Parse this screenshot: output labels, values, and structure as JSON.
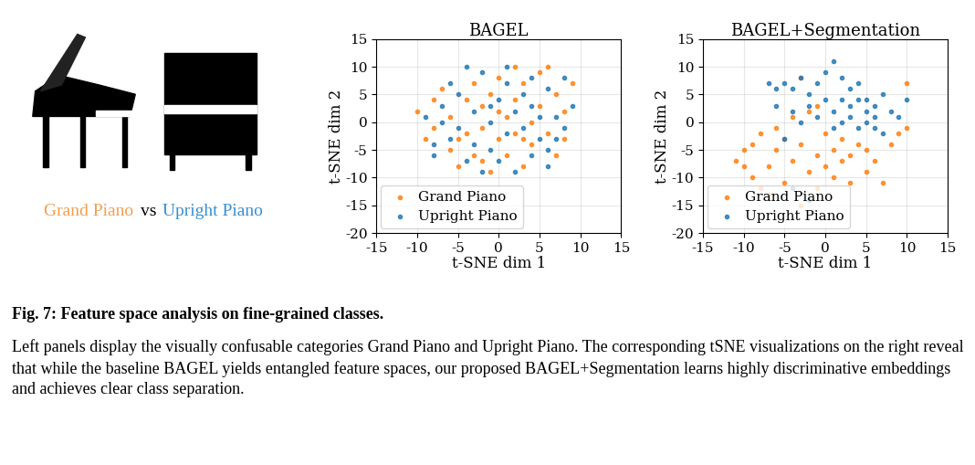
{
  "panel_text": {
    "left": "Grand Piano",
    "middle": "vs",
    "right": "Upright Piano",
    "left_color": "#f0a050",
    "right_color": "#3a8fd0"
  },
  "chart_data": [
    {
      "type": "scatter",
      "title": "BAGEL",
      "x_label": "t-SNE dim 1",
      "y_label": "t-SNE dim 2",
      "xlim": [
        -15,
        15
      ],
      "ylim": [
        -20,
        15
      ],
      "xticks": [
        -15,
        -10,
        -5,
        0,
        5,
        10,
        15
      ],
      "yticks": [
        -20,
        -15,
        -10,
        -5,
        0,
        5,
        10,
        15
      ],
      "grid": true,
      "legend": "lower left",
      "series": [
        {
          "name": "Grand Piano",
          "color": "#ff7f0e",
          "x": [
            -10,
            -9,
            -8,
            -7,
            -6,
            -6,
            -5,
            -4,
            -4,
            -3,
            -3,
            -2,
            -2,
            -1,
            -1,
            0,
            0,
            1,
            1,
            2,
            2,
            2,
            3,
            3,
            4,
            4,
            5,
            5,
            6,
            6,
            7,
            7,
            8,
            8,
            9,
            -8,
            -5,
            0,
            3,
            -2
          ],
          "y": [
            2,
            -3,
            -1,
            6,
            -5,
            1,
            -8,
            4,
            -2,
            7,
            -6,
            -1,
            3,
            -9,
            5,
            -3,
            8,
            -6,
            1,
            10,
            -2,
            4,
            -8,
            7,
            0,
            -4,
            9,
            3,
            -2,
            10,
            5,
            -6,
            2,
            -3,
            7,
            4,
            -3,
            2,
            -3,
            -7
          ]
        },
        {
          "name": "Upright Piano",
          "color": "#1f77b4",
          "x": [
            -9,
            -8,
            -7,
            -7,
            -6,
            -5,
            -5,
            -4,
            -3,
            -3,
            -2,
            -2,
            -1,
            -1,
            0,
            0,
            1,
            1,
            2,
            2,
            3,
            3,
            4,
            4,
            5,
            5,
            6,
            6,
            7,
            7,
            8,
            8,
            9,
            -4,
            -6,
            1,
            -8,
            4,
            -1,
            6
          ],
          "y": [
            1,
            -6,
            0,
            3,
            7,
            -1,
            5,
            -7,
            2,
            -4,
            9,
            -9,
            0,
            -5,
            4,
            -7,
            7,
            -2,
            -9,
            2,
            5,
            -1,
            8,
            -6,
            -3,
            1,
            6,
            -8,
            1,
            -3,
            8,
            -1,
            3,
            10,
            -3,
            10,
            -4,
            3,
            3,
            -5
          ]
        }
      ]
    },
    {
      "type": "scatter",
      "title": "BAGEL+Segmentation",
      "x_label": "t-SNE dim 1",
      "y_label": "t-SNE dim 2",
      "xlim": [
        -15,
        15
      ],
      "ylim": [
        -20,
        15
      ],
      "xticks": [
        -15,
        -10,
        -5,
        0,
        5,
        10,
        15
      ],
      "yticks": [
        -20,
        -15,
        -10,
        -5,
        0,
        5,
        10,
        15
      ],
      "grid": true,
      "legend": "lower left",
      "series": [
        {
          "name": "Grand Piano",
          "color": "#ff7f0e",
          "x": [
            -11,
            -10,
            -9,
            -9,
            -8,
            -8,
            -7,
            -7,
            -6,
            -6,
            -5,
            -5,
            -4,
            -4,
            -3,
            -3,
            -2,
            -2,
            -1,
            -1,
            0,
            0,
            1,
            1,
            2,
            2,
            3,
            3,
            4,
            5,
            5,
            6,
            7,
            8,
            9,
            10,
            10,
            -3,
            -1,
            -10
          ],
          "y": [
            -7,
            -5,
            -10,
            -4,
            -2,
            -12,
            -8,
            -13,
            -5,
            -1,
            -11,
            -3,
            -7,
            1,
            -15,
            -4,
            -9,
            2,
            -6,
            -12,
            -2,
            -8,
            -5,
            -10,
            -3,
            -7,
            -6,
            -11,
            -4,
            -9,
            -5,
            -7,
            -11,
            -4,
            -2,
            -1,
            7,
            8,
            3,
            -8
          ]
        },
        {
          "name": "Upright Piano",
          "color": "#1f77b4",
          "x": [
            -7,
            -6,
            -5,
            -4,
            -3,
            -2,
            -1,
            0,
            1,
            2,
            3,
            4,
            5,
            6,
            7,
            8,
            9,
            10,
            -6,
            -4,
            -2,
            0,
            1,
            2,
            3,
            4,
            5,
            6,
            7,
            3,
            4,
            2,
            -1,
            -3,
            5,
            6,
            -5,
            -2,
            -4,
            1
          ],
          "y": [
            7,
            6,
            7,
            6,
            8,
            5,
            7,
            9,
            11,
            8,
            6,
            7,
            4,
            3,
            5,
            2,
            1,
            4,
            3,
            2,
            3,
            4,
            2,
            0,
            1,
            -1,
            0,
            -1,
            -2,
            3,
            4,
            4,
            1,
            0,
            2,
            1,
            -3,
            -14,
            -12,
            -1
          ]
        }
      ]
    }
  ],
  "caption": {
    "label": "Fig. 7: Feature space analysis on fine-grained classes.",
    "text": "Left panels display the visually confusable categories Grand Piano and Upright Piano. The corresponding tSNE visualizations on the right reveal that while the baseline BAGEL yields entangled feature spaces, our proposed BAGEL+Segmentation learns highly discriminative embeddings and achieves clear class separation."
  }
}
